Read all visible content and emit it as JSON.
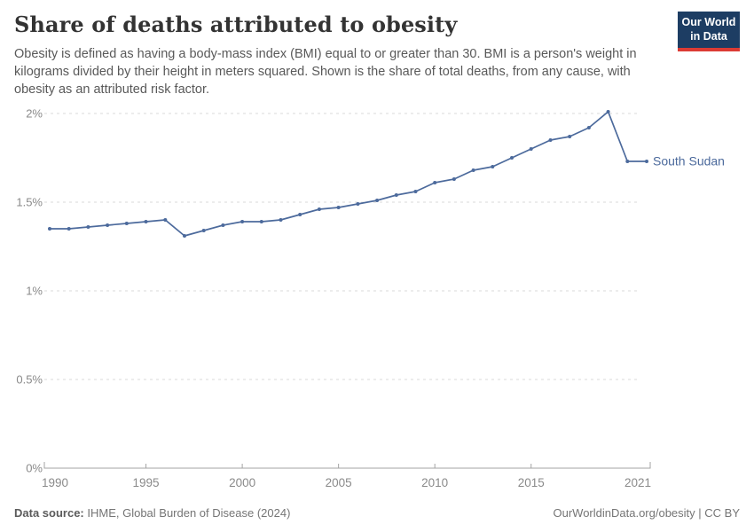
{
  "header": {
    "title": "Share of deaths attributed to obesity",
    "subtitle": "Obesity is defined as having a body-mass index (BMI) equal to or greater than 30. BMI is a person's weight in kilograms divided by their height in meters squared. Shown is the share of total deaths, from any cause, with obesity as an attributed risk factor.",
    "logo": {
      "line1": "Our World",
      "line2": "in Data",
      "bg_color": "#1d3d63",
      "bar_color": "#dc3b34"
    }
  },
  "chart_data": {
    "type": "line",
    "title": "Share of deaths attributed to obesity",
    "entity": "South Sudan",
    "unit": "%",
    "x": [
      1990,
      1991,
      1992,
      1993,
      1994,
      1995,
      1996,
      1997,
      1998,
      1999,
      2000,
      2001,
      2002,
      2003,
      2004,
      2005,
      2006,
      2007,
      2008,
      2009,
      2010,
      2011,
      2012,
      2013,
      2014,
      2015,
      2016,
      2017,
      2018,
      2019,
      2020,
      2021
    ],
    "y": [
      1.35,
      1.35,
      1.36,
      1.37,
      1.38,
      1.39,
      1.4,
      1.31,
      1.34,
      1.37,
      1.39,
      1.39,
      1.4,
      1.43,
      1.46,
      1.47,
      1.49,
      1.51,
      1.54,
      1.56,
      1.61,
      1.63,
      1.68,
      1.7,
      1.75,
      1.8,
      1.85,
      1.87,
      1.92,
      2.01,
      1.73,
      1.73
    ],
    "ylim": [
      0,
      2
    ],
    "yticks": [
      {
        "value": 0,
        "label": "0%"
      },
      {
        "value": 0.5,
        "label": "0.5%"
      },
      {
        "value": 1,
        "label": "1%"
      },
      {
        "value": 1.5,
        "label": "1.5%"
      },
      {
        "value": 2,
        "label": "2%"
      }
    ],
    "xticks": [
      1990,
      1995,
      2000,
      2005,
      2010,
      2015,
      2021
    ],
    "grid": "horizontal-dashed",
    "legend_position": "end-of-line-label",
    "line_color": "#4c6a9c",
    "grid_color": "#dadada",
    "axis_color": "#a3a3a3",
    "tick_label_color": "#8a8a8a"
  },
  "footer": {
    "source_label": "Data source:",
    "source": " IHME, Global Burden of Disease (2024)",
    "credit": "OurWorldinData.org/obesity | CC BY"
  }
}
